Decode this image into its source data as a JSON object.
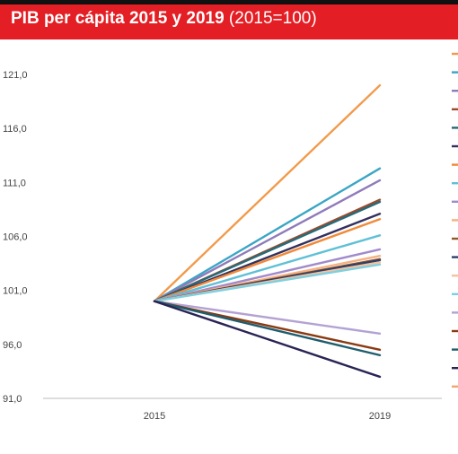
{
  "title": {
    "main": "PIB per cápita 2015 y 2019",
    "note": " (2015=100)"
  },
  "colors": {
    "header": "#e31e24",
    "series": [
      "#f29a4a",
      "#3aa6c4",
      "#8f7bb9",
      "#9c4a2c",
      "#256b7a",
      "#34305e",
      "#f08a3a",
      "#5fc0d6",
      "#a08acb",
      "#f6b083",
      "#8e5a2c",
      "#2d3f6a",
      "#f7c19c",
      "#7dd0e0",
      "#b3a2d3",
      "#8a3a12",
      "#1f5d6e",
      "#2a2456",
      "#f4a46e"
    ]
  },
  "chart_data": {
    "type": "line",
    "x": [
      "2015",
      "2019"
    ],
    "ylim": [
      91.0,
      122.0
    ],
    "yticks": [
      "91,0",
      "96,0",
      "101,0",
      "106,0",
      "111,0",
      "116,0",
      "121,0"
    ],
    "series": [
      {
        "values": [
          100,
          120.0
        ]
      },
      {
        "values": [
          100,
          112.3
        ]
      },
      {
        "values": [
          100,
          111.2
        ]
      },
      {
        "values": [
          100,
          109.4
        ]
      },
      {
        "values": [
          100,
          109.2
        ]
      },
      {
        "values": [
          100,
          108.1
        ]
      },
      {
        "values": [
          100,
          107.6
        ]
      },
      {
        "values": [
          100,
          106.1
        ]
      },
      {
        "values": [
          100,
          104.8
        ]
      },
      {
        "values": [
          100,
          104.2
        ]
      },
      {
        "values": [
          100,
          103.9
        ]
      },
      {
        "values": [
          100,
          103.8
        ]
      },
      {
        "values": [
          100,
          103.6
        ]
      },
      {
        "values": [
          100,
          103.4
        ]
      },
      {
        "values": [
          100,
          97.0
        ]
      },
      {
        "values": [
          100,
          95.5
        ]
      },
      {
        "values": [
          100,
          95.0
        ]
      },
      {
        "values": [
          100,
          93.0
        ]
      }
    ]
  }
}
